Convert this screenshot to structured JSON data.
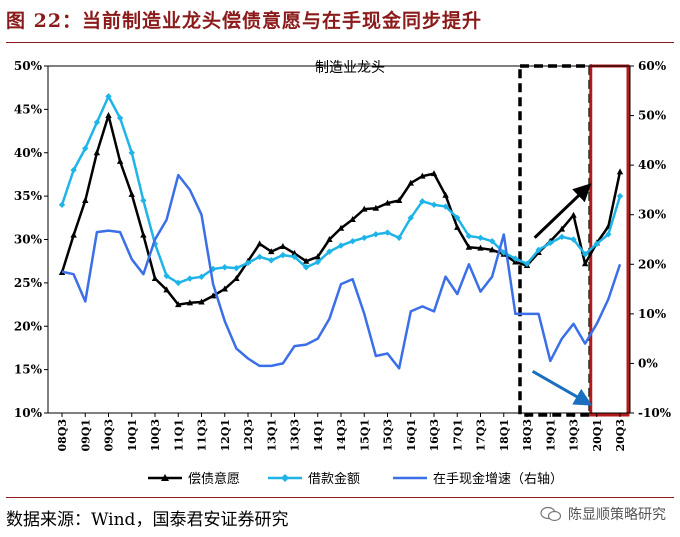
{
  "figure": {
    "title": "图 22：当前制造业龙头偿债意愿与在手现金同步提升",
    "source": "数据来源：Wind，国泰君安证券研究",
    "watermark": "陈显顺策略研究"
  },
  "colors": {
    "title": "#8b1a1a",
    "debt_willingness": "#000000",
    "loan_amount": "#1fb4e8",
    "cash_growth": "#3b6fe8",
    "dashed_box": "#000000",
    "red_box": "#b01c1c",
    "arrow_up": "#000000",
    "arrow_down": "#1a6fbf"
  },
  "chart_data": {
    "type": "line",
    "title": "制造业龙头",
    "x": [
      "08Q3",
      "08Q4",
      "09Q1",
      "09Q2",
      "09Q3",
      "09Q4",
      "10Q1",
      "10Q2",
      "10Q3",
      "10Q4",
      "11Q1",
      "11Q2",
      "11Q3",
      "11Q4",
      "12Q1",
      "12Q2",
      "12Q3",
      "12Q4",
      "13Q1",
      "13Q2",
      "13Q3",
      "13Q4",
      "14Q1",
      "14Q2",
      "14Q3",
      "14Q4",
      "15Q1",
      "15Q2",
      "15Q3",
      "15Q4",
      "16Q1",
      "16Q2",
      "16Q3",
      "16Q4",
      "17Q1",
      "17Q2",
      "17Q3",
      "17Q4",
      "18Q1",
      "18Q2",
      "18Q3",
      "18Q4",
      "19Q1",
      "19Q2",
      "19Q3",
      "19Q4",
      "20Q1",
      "20Q2",
      "20Q3"
    ],
    "x_tick_labels": [
      "08Q3",
      "09Q1",
      "09Q3",
      "10Q1",
      "10Q3",
      "11Q1",
      "11Q3",
      "12Q1",
      "12Q3",
      "13Q1",
      "13Q3",
      "14Q1",
      "14Q3",
      "15Q1",
      "15Q3",
      "16Q1",
      "16Q3",
      "17Q1",
      "17Q3",
      "18Q1",
      "18Q3",
      "19Q1",
      "19Q3",
      "20Q1",
      "20Q3"
    ],
    "ylim_left": [
      10,
      50
    ],
    "yticks_left": [
      "10%",
      "15%",
      "20%",
      "25%",
      "30%",
      "35%",
      "40%",
      "45%",
      "50%"
    ],
    "ylim_right": [
      -10,
      60
    ],
    "yticks_right": [
      "-10%",
      "0%",
      "10%",
      "20%",
      "30%",
      "40%",
      "50%",
      "60%"
    ],
    "series": [
      {
        "name": "偿债意愿",
        "axis": "left",
        "marker": "triangle",
        "values": [
          26.2,
          30.5,
          34.5,
          40.0,
          44.3,
          39.0,
          35.2,
          30.5,
          25.5,
          24.2,
          22.5,
          22.7,
          22.8,
          23.5,
          24.3,
          25.5,
          27.5,
          29.5,
          28.6,
          29.2,
          28.4,
          27.5,
          28.0,
          30.0,
          31.3,
          32.3,
          33.5,
          33.6,
          34.2,
          34.5,
          36.5,
          37.3,
          37.6,
          35.1,
          31.4,
          29.1,
          29.0,
          28.8,
          28.3,
          27.4,
          27.0,
          28.5,
          29.8,
          31.2,
          32.8,
          27.2,
          29.6,
          31.5,
          37.8
        ]
      },
      {
        "name": "借款金额",
        "axis": "left",
        "marker": "diamond",
        "values": [
          34.0,
          38.0,
          40.5,
          43.5,
          46.5,
          44.0,
          40.0,
          34.5,
          29.5,
          25.8,
          25.0,
          25.5,
          25.7,
          26.6,
          26.8,
          26.7,
          27.3,
          28.0,
          27.6,
          28.2,
          28.0,
          26.8,
          27.4,
          28.6,
          29.3,
          29.8,
          30.2,
          30.6,
          30.8,
          30.2,
          32.5,
          34.4,
          34.0,
          33.8,
          32.5,
          30.4,
          30.2,
          29.8,
          28.5,
          27.8,
          27.2,
          28.8,
          29.6,
          30.3,
          30.0,
          28.3,
          29.5,
          30.6,
          35.0
        ]
      },
      {
        "name": "在手现金增速（右轴）",
        "axis": "right",
        "marker": "none",
        "values": [
          18.5,
          18.0,
          12.5,
          26.5,
          26.8,
          26.5,
          21.0,
          18.0,
          25.0,
          29.0,
          38.0,
          35.0,
          30.0,
          16.0,
          8.5,
          3.0,
          1.0,
          -0.5,
          -0.5,
          0.0,
          3.5,
          3.8,
          5.0,
          9.0,
          16.0,
          17.0,
          10.0,
          1.5,
          2.0,
          -1.0,
          10.5,
          11.5,
          10.5,
          17.5,
          14.0,
          20.0,
          14.5,
          17.5,
          26.0,
          10.0,
          10.0,
          10.0,
          0.5,
          5.0,
          8.0,
          4.0,
          8.0,
          13.0,
          20.0
        ]
      }
    ],
    "legend": {
      "placement": "bottom",
      "entries": [
        "偿债意愿",
        "借款金额",
        "在手现金增速（右轴）"
      ]
    },
    "grid": false,
    "annotations": {
      "dashed_box": {
        "from": "18Q3",
        "to": "19Q4"
      },
      "red_box": {
        "from": "20Q1",
        "to": "20Q3"
      },
      "arrow_up": {
        "from": "18Q4",
        "to": "19Q4",
        "color": "#000000"
      },
      "arrow_down": {
        "from": "18Q4",
        "to": "19Q4",
        "color": "#1a6fbf"
      }
    }
  }
}
